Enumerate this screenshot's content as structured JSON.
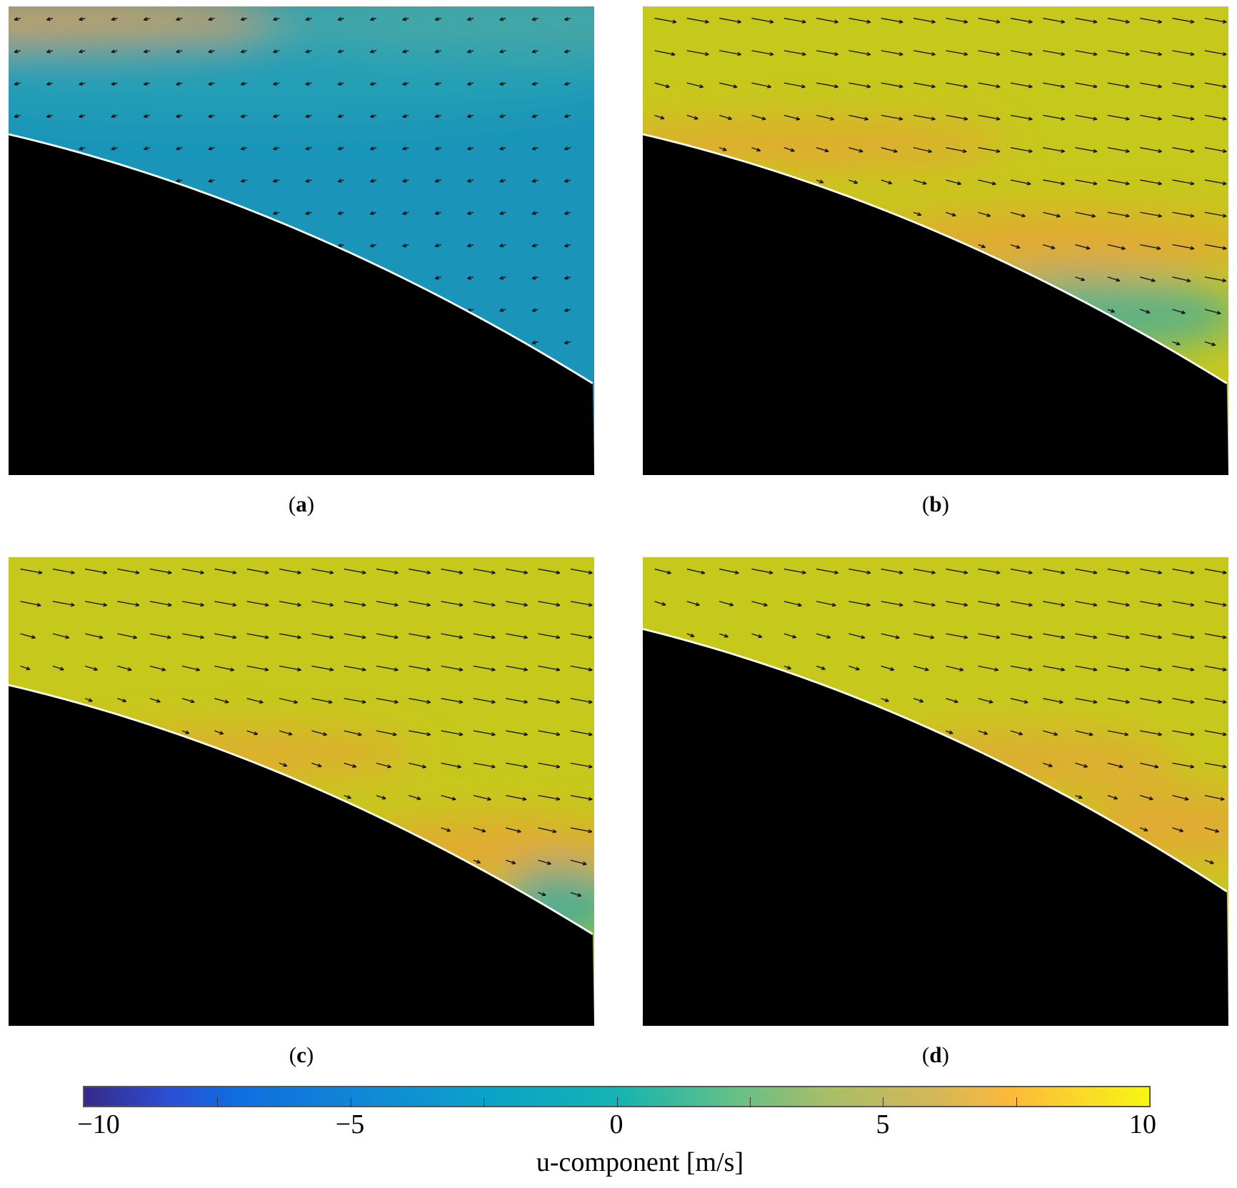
{
  "panels": [
    {
      "id": "a",
      "label": "a",
      "flow": "reversed"
    },
    {
      "id": "b",
      "label": "b",
      "flow": "forward"
    },
    {
      "id": "c",
      "label": "c",
      "flow": "forward"
    },
    {
      "id": "d",
      "label": "d",
      "flow": "forward"
    }
  ],
  "colorbar": {
    "min": -10,
    "max": 10,
    "ticks": [
      "−10",
      "−5",
      "0",
      "5",
      "10"
    ],
    "label": "u-component [m/s]",
    "colormap": "parula"
  }
}
